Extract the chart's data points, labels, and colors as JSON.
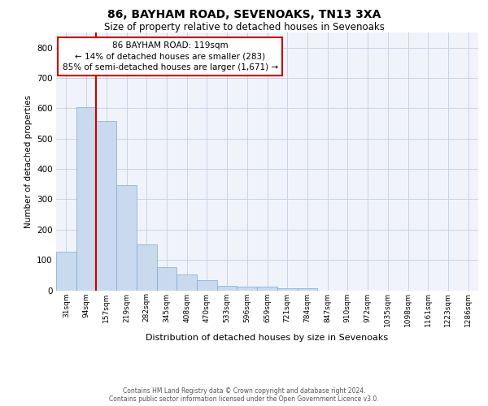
{
  "title1": "86, BAYHAM ROAD, SEVENOAKS, TN13 3XA",
  "title2": "Size of property relative to detached houses in Sevenoaks",
  "xlabel": "Distribution of detached houses by size in Sevenoaks",
  "ylabel": "Number of detached properties",
  "bar_color": "#c9d9ee",
  "bar_edge_color": "#7aaad4",
  "grid_color": "#c8d4e8",
  "background_color": "#f0f4fa",
  "vline_color": "#cc0000",
  "annotation_line1": "86 BAYHAM ROAD: 119sqm",
  "annotation_line2": "← 14% of detached houses are smaller (283)",
  "annotation_line3": "85% of semi-detached houses are larger (1,671) →",
  "annotation_box_edge": "#cc0000",
  "categories": [
    "31sqm",
    "94sqm",
    "157sqm",
    "219sqm",
    "282sqm",
    "345sqm",
    "408sqm",
    "470sqm",
    "533sqm",
    "596sqm",
    "659sqm",
    "721sqm",
    "784sqm",
    "847sqm",
    "910sqm",
    "972sqm",
    "1035sqm",
    "1098sqm",
    "1161sqm",
    "1223sqm",
    "1286sqm"
  ],
  "values": [
    128,
    603,
    558,
    348,
    150,
    75,
    52,
    33,
    15,
    13,
    13,
    7,
    8,
    0,
    0,
    0,
    0,
    0,
    0,
    0,
    0
  ],
  "ylim": [
    0,
    850
  ],
  "yticks": [
    0,
    100,
    200,
    300,
    400,
    500,
    600,
    700,
    800
  ],
  "footer1": "Contains HM Land Registry data © Crown copyright and database right 2024.",
  "footer2": "Contains public sector information licensed under the Open Government Licence v3.0."
}
